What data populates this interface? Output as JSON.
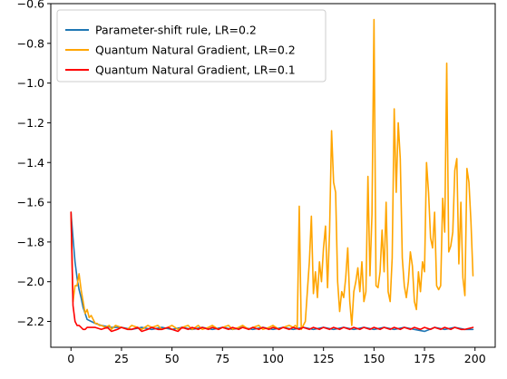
{
  "chart_data": {
    "type": "line",
    "title": "",
    "xlabel": "",
    "ylabel": "",
    "xlim": [
      -10,
      210
    ],
    "ylim": [
      -2.33,
      -0.6
    ],
    "xticks": [
      0,
      25,
      50,
      75,
      100,
      125,
      150,
      175,
      200
    ],
    "yticks": [
      -2.2,
      -2.0,
      -1.8,
      -1.6,
      -1.4,
      -1.2,
      -1.0,
      -0.8,
      -0.6
    ],
    "ytick_labels": [
      "−2.2",
      "−2.0",
      "−1.8",
      "−1.6",
      "−1.4",
      "−1.2",
      "−1.0",
      "−0.8",
      "−0.6"
    ],
    "legend_position": "upper-left",
    "series": [
      {
        "name": "Parameter-shift rule, LR=0.2",
        "color": "#1f77b4",
        "x": [
          0,
          1,
          2,
          3,
          4,
          5,
          6,
          7,
          8,
          10,
          12,
          15,
          20,
          25,
          30,
          35,
          40,
          45,
          50,
          55,
          60,
          65,
          70,
          75,
          80,
          85,
          90,
          95,
          100,
          105,
          110,
          115,
          120,
          125,
          130,
          135,
          140,
          145,
          150,
          155,
          160,
          165,
          170,
          175,
          180,
          185,
          190,
          195,
          199
        ],
        "values": [
          -1.65,
          -1.78,
          -1.9,
          -1.98,
          -2.04,
          -2.08,
          -2.13,
          -2.16,
          -2.19,
          -2.2,
          -2.21,
          -2.22,
          -2.23,
          -2.23,
          -2.24,
          -2.23,
          -2.24,
          -2.23,
          -2.24,
          -2.23,
          -2.24,
          -2.23,
          -2.24,
          -2.23,
          -2.24,
          -2.23,
          -2.24,
          -2.23,
          -2.24,
          -2.23,
          -2.24,
          -2.23,
          -2.24,
          -2.23,
          -2.24,
          -2.23,
          -2.24,
          -2.23,
          -2.24,
          -2.23,
          -2.24,
          -2.23,
          -2.24,
          -2.25,
          -2.23,
          -2.24,
          -2.23,
          -2.24,
          -2.24
        ]
      },
      {
        "name": "Quantum Natural Gradient, LR=0.2",
        "color": "#ffa500",
        "x": [
          0,
          1,
          2,
          3,
          4,
          5,
          6,
          7,
          8,
          9,
          10,
          11,
          12,
          13,
          14,
          15,
          17,
          19,
          20,
          22,
          25,
          28,
          30,
          33,
          35,
          38,
          40,
          43,
          45,
          48,
          50,
          53,
          55,
          58,
          60,
          63,
          65,
          68,
          70,
          73,
          75,
          78,
          80,
          83,
          85,
          88,
          90,
          93,
          95,
          98,
          100,
          103,
          105,
          108,
          110,
          111,
          112,
          113,
          114,
          115,
          116,
          117,
          118,
          119,
          120,
          121,
          122,
          123,
          124,
          125,
          126,
          127,
          128,
          129,
          130,
          131,
          132,
          133,
          134,
          135,
          136,
          137,
          138,
          139,
          140,
          141,
          142,
          143,
          144,
          145,
          146,
          147,
          148,
          149,
          150,
          151,
          152,
          153,
          154,
          155,
          156,
          157,
          158,
          159,
          160,
          161,
          162,
          163,
          164,
          165,
          166,
          167,
          168,
          169,
          170,
          171,
          172,
          173,
          174,
          175,
          176,
          177,
          178,
          179,
          180,
          181,
          182,
          183,
          184,
          185,
          186,
          187,
          188,
          189,
          190,
          191,
          192,
          193,
          194,
          195,
          196,
          197,
          198,
          199
        ],
        "values": [
          -1.65,
          -2.1,
          -2.02,
          -2.02,
          -1.96,
          -2.04,
          -2.1,
          -2.16,
          -2.14,
          -2.18,
          -2.17,
          -2.19,
          -2.21,
          -2.21,
          -2.22,
          -2.22,
          -2.23,
          -2.22,
          -2.24,
          -2.22,
          -2.23,
          -2.24,
          -2.22,
          -2.23,
          -2.24,
          -2.22,
          -2.23,
          -2.22,
          -2.24,
          -2.23,
          -2.22,
          -2.24,
          -2.23,
          -2.22,
          -2.24,
          -2.22,
          -2.24,
          -2.23,
          -2.22,
          -2.24,
          -2.23,
          -2.22,
          -2.24,
          -2.23,
          -2.22,
          -2.24,
          -2.23,
          -2.22,
          -2.24,
          -2.23,
          -2.22,
          -2.24,
          -2.23,
          -2.22,
          -2.23,
          -2.22,
          -2.23,
          -1.62,
          -2.24,
          -2.22,
          -2.2,
          -2.05,
          -1.9,
          -1.67,
          -2.06,
          -1.95,
          -2.08,
          -1.9,
          -2.0,
          -1.83,
          -1.72,
          -2.03,
          -1.75,
          -1.24,
          -1.5,
          -1.55,
          -2.0,
          -2.15,
          -2.05,
          -2.08,
          -1.98,
          -1.83,
          -2.1,
          -2.22,
          -2.05,
          -2.0,
          -1.93,
          -2.05,
          -1.9,
          -2.1,
          -2.05,
          -1.47,
          -1.97,
          -1.66,
          -0.68,
          -2.02,
          -2.03,
          -1.95,
          -1.74,
          -1.95,
          -1.6,
          -2.05,
          -2.1,
          -1.88,
          -1.13,
          -1.55,
          -1.2,
          -1.38,
          -1.88,
          -2.02,
          -2.08,
          -2.0,
          -1.85,
          -1.92,
          -2.1,
          -2.14,
          -1.95,
          -2.05,
          -1.9,
          -1.95,
          -1.4,
          -1.55,
          -1.78,
          -1.83,
          -1.65,
          -2.02,
          -2.04,
          -2.02,
          -1.58,
          -1.75,
          -0.9,
          -1.85,
          -1.82,
          -1.75,
          -1.44,
          -1.38,
          -1.91,
          -1.6,
          -1.98,
          -2.07,
          -1.43,
          -1.5,
          -1.7,
          -1.97
        ]
      },
      {
        "name": "Quantum Natural Gradient, LR=0.1",
        "color": "#ff0000",
        "x": [
          0,
          1,
          2,
          3,
          4,
          5,
          6,
          7,
          8,
          10,
          12,
          15,
          18,
          20,
          23,
          25,
          28,
          30,
          33,
          35,
          38,
          40,
          43,
          45,
          48,
          50,
          53,
          55,
          58,
          60,
          63,
          65,
          68,
          70,
          73,
          75,
          78,
          80,
          83,
          85,
          88,
          90,
          93,
          95,
          98,
          100,
          103,
          105,
          108,
          110,
          113,
          115,
          118,
          120,
          123,
          125,
          128,
          130,
          133,
          135,
          138,
          140,
          143,
          145,
          148,
          150,
          153,
          155,
          158,
          160,
          163,
          165,
          168,
          170,
          173,
          175,
          178,
          180,
          183,
          185,
          188,
          190,
          193,
          195,
          199
        ],
        "values": [
          -1.65,
          -2.12,
          -2.2,
          -2.22,
          -2.22,
          -2.23,
          -2.24,
          -2.24,
          -2.23,
          -2.23,
          -2.23,
          -2.24,
          -2.23,
          -2.25,
          -2.24,
          -2.23,
          -2.24,
          -2.24,
          -2.23,
          -2.25,
          -2.24,
          -2.23,
          -2.24,
          -2.24,
          -2.23,
          -2.24,
          -2.25,
          -2.23,
          -2.24,
          -2.23,
          -2.24,
          -2.23,
          -2.24,
          -2.23,
          -2.24,
          -2.23,
          -2.24,
          -2.23,
          -2.24,
          -2.23,
          -2.24,
          -2.23,
          -2.24,
          -2.23,
          -2.24,
          -2.23,
          -2.24,
          -2.23,
          -2.24,
          -2.23,
          -2.24,
          -2.23,
          -2.24,
          -2.23,
          -2.24,
          -2.23,
          -2.24,
          -2.23,
          -2.24,
          -2.23,
          -2.24,
          -2.23,
          -2.24,
          -2.23,
          -2.24,
          -2.23,
          -2.24,
          -2.23,
          -2.24,
          -2.23,
          -2.24,
          -2.23,
          -2.24,
          -2.23,
          -2.24,
          -2.23,
          -2.24,
          -2.23,
          -2.24,
          -2.23,
          -2.24,
          -2.23,
          -2.24,
          -2.24,
          -2.23
        ]
      }
    ]
  }
}
